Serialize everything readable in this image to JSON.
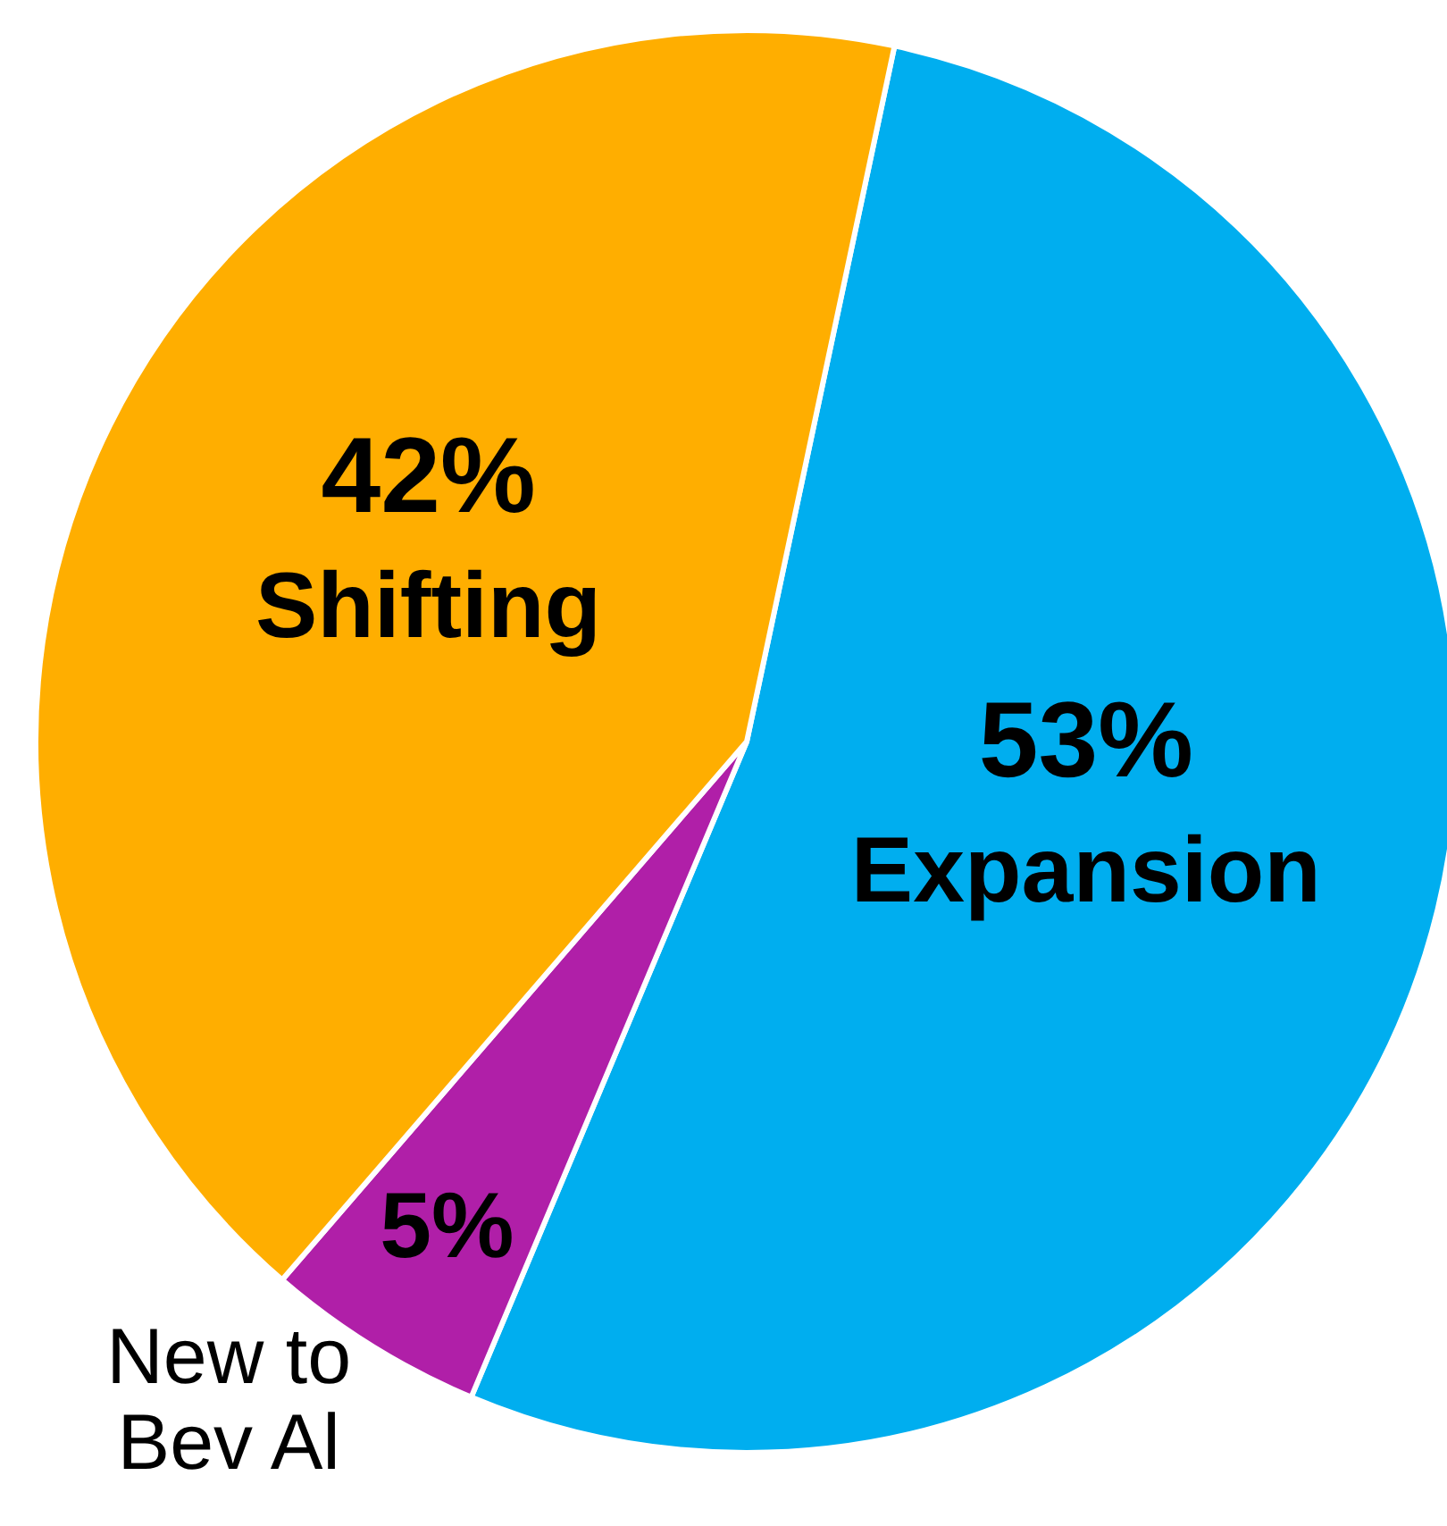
{
  "chart_data": {
    "type": "pie",
    "categories": [
      "Expansion",
      "New to Bev Al",
      "Shifting"
    ],
    "values": [
      53,
      5,
      42
    ],
    "colors": [
      "#00aeef",
      "#b01fa8",
      "#ffae00"
    ],
    "value_labels": [
      "53%",
      "5%",
      "42%"
    ],
    "legend": false
  }
}
